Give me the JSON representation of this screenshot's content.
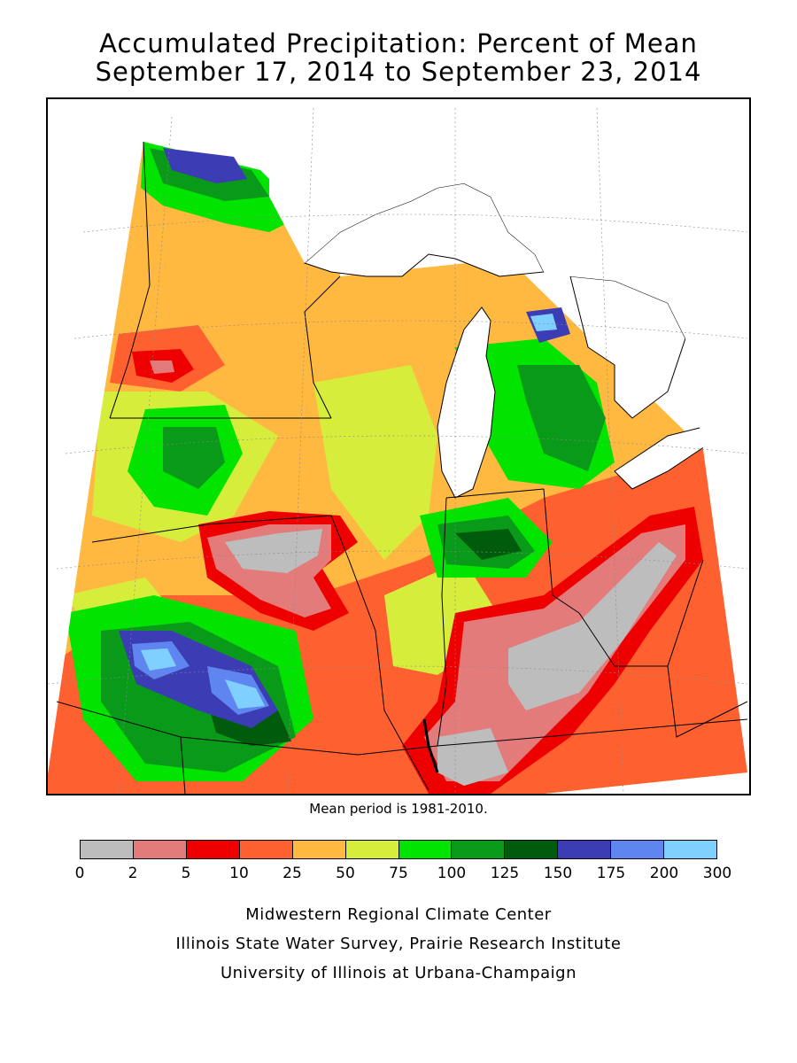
{
  "title_line1": "Accumulated Precipitation: Percent of Mean",
  "title_line2": "September 17, 2014 to September 23, 2014",
  "note": "Mean period is 1981-2010.",
  "legend": {
    "colors": [
      "#bdbdbd",
      "#e37b7b",
      "#ee0000",
      "#ff6030",
      "#ffb940",
      "#d6ed3c",
      "#00e400",
      "#0a9a1a",
      "#005c0c",
      "#3c3cb4",
      "#5f86f0",
      "#7fd0ff"
    ],
    "ticks": [
      "0",
      "2",
      "5",
      "10",
      "25",
      "50",
      "75",
      "100",
      "125",
      "150",
      "175",
      "200",
      "300"
    ]
  },
  "credits": [
    "Midwestern Regional Climate Center",
    "Illinois State Water Survey, Prairie Research Institute",
    "University of Illinois at Urbana-Champaign"
  ]
}
